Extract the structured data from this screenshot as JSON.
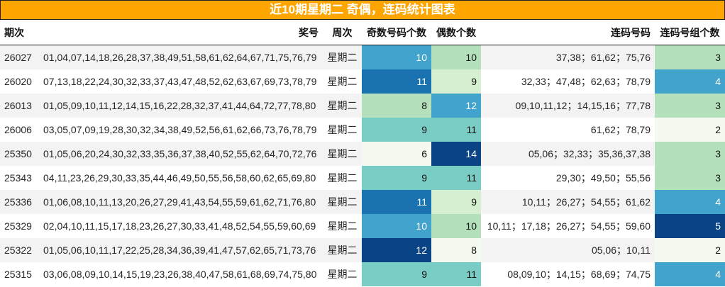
{
  "title": "近10期星期二 奇偶，连码统计图表",
  "columns": [
    "期次",
    "奖号",
    "周次",
    "奇数号码个数",
    "偶数个数",
    "连码号码",
    "连码号组个数"
  ],
  "rows": [
    {
      "issue": "26027",
      "numbers": "01,04,07,14,18,26,28,37,38,49,51,58,61,62,64,67,71,75,76,79",
      "weekday": "星期二",
      "odd": "10",
      "even": "10",
      "consecutive": "37,38；61,62；75,76",
      "groups": "3"
    },
    {
      "issue": "26020",
      "numbers": "07,13,18,22,24,30,32,33,37,43,47,48,52,62,63,67,69,73,78,79",
      "weekday": "星期二",
      "odd": "11",
      "even": "9",
      "consecutive": "32,33；47,48；62,63；78,79",
      "groups": "4"
    },
    {
      "issue": "26013",
      "numbers": "01,05,09,10,11,12,14,15,16,22,28,32,37,41,44,64,72,77,78,80",
      "weekday": "星期二",
      "odd": "8",
      "even": "12",
      "consecutive": "09,10,11,12；14,15,16；77,78",
      "groups": "3"
    },
    {
      "issue": "26006",
      "numbers": "03,05,07,09,19,28,30,32,34,38,49,52,56,61,62,66,73,76,78,79",
      "weekday": "星期二",
      "odd": "9",
      "even": "11",
      "consecutive": "61,62；78,79",
      "groups": "2"
    },
    {
      "issue": "25350",
      "numbers": "01,05,06,20,24,30,32,33,35,36,37,38,40,52,55,62,64,70,72,76",
      "weekday": "星期二",
      "odd": "6",
      "even": "14",
      "consecutive": "05,06；32,33；35,36,37,38",
      "groups": "3"
    },
    {
      "issue": "25343",
      "numbers": "04,11,23,26,29,30,33,35,44,46,49,50,55,56,58,60,62,65,69,80",
      "weekday": "星期二",
      "odd": "9",
      "even": "11",
      "consecutive": "29,30；49,50；55,56",
      "groups": "3"
    },
    {
      "issue": "25336",
      "numbers": "01,06,08,10,11,13,20,26,27,29,41,43,54,55,59,61,62,71,76,80",
      "weekday": "星期二",
      "odd": "11",
      "even": "9",
      "consecutive": "10,11；26,27；54,55；61,62",
      "groups": "4"
    },
    {
      "issue": "25329",
      "numbers": "02,04,10,11,15,17,18,23,26,27,30,33,41,48,52,54,55,59,60,69",
      "weekday": "星期二",
      "odd": "10",
      "even": "10",
      "consecutive": "10,11；17,18；26,27；54,55；59,60",
      "groups": "5"
    },
    {
      "issue": "25322",
      "numbers": "01,05,06,10,11,17,22,25,28,34,36,39,41,47,57,62,65,71,73,76",
      "weekday": "星期二",
      "odd": "12",
      "even": "8",
      "consecutive": "05,06；10,11",
      "groups": "2"
    },
    {
      "issue": "25315",
      "numbers": "03,06,08,09,10,14,15,19,23,26,38,40,47,58,61,68,69,74,75,80",
      "weekday": "星期二",
      "odd": "9",
      "even": "11",
      "consecutive": "08,09,10；14,15；68,69；74,75",
      "groups": "4"
    }
  ],
  "colors": {
    "title_bg": "#ffa500",
    "odd_cells": [
      "#42a4cc",
      "#1a72b0",
      "#b4e1bc",
      "#7acdc4",
      "#f4faef",
      "#7acdc4",
      "#1a72b0",
      "#42a4cc",
      "#0a4485",
      "#7acdc4"
    ],
    "even_cells": [
      "#b4e1bc",
      "#d6efd0",
      "#42a4cc",
      "#7acdc4",
      "#0a4485",
      "#7acdc4",
      "#d6efd0",
      "#b4e1bc",
      "#f4faef",
      "#7acdc4"
    ],
    "group_cells": [
      "#b4e1bc",
      "#42a4cc",
      "#b4e1bc",
      "#f4faef",
      "#b4e1bc",
      "#b4e1bc",
      "#42a4cc",
      "#0a4485",
      "#f4faef",
      "#42a4cc"
    ],
    "odd_text": [
      "#ffffff",
      "#ffffff",
      "#111111",
      "#111111",
      "#111111",
      "#111111",
      "#ffffff",
      "#ffffff",
      "#ffffff",
      "#111111"
    ],
    "even_text": [
      "#111111",
      "#111111",
      "#ffffff",
      "#111111",
      "#ffffff",
      "#111111",
      "#111111",
      "#111111",
      "#111111",
      "#111111"
    ],
    "group_text": [
      "#111111",
      "#ffffff",
      "#111111",
      "#111111",
      "#111111",
      "#111111",
      "#ffffff",
      "#ffffff",
      "#111111",
      "#ffffff"
    ]
  }
}
